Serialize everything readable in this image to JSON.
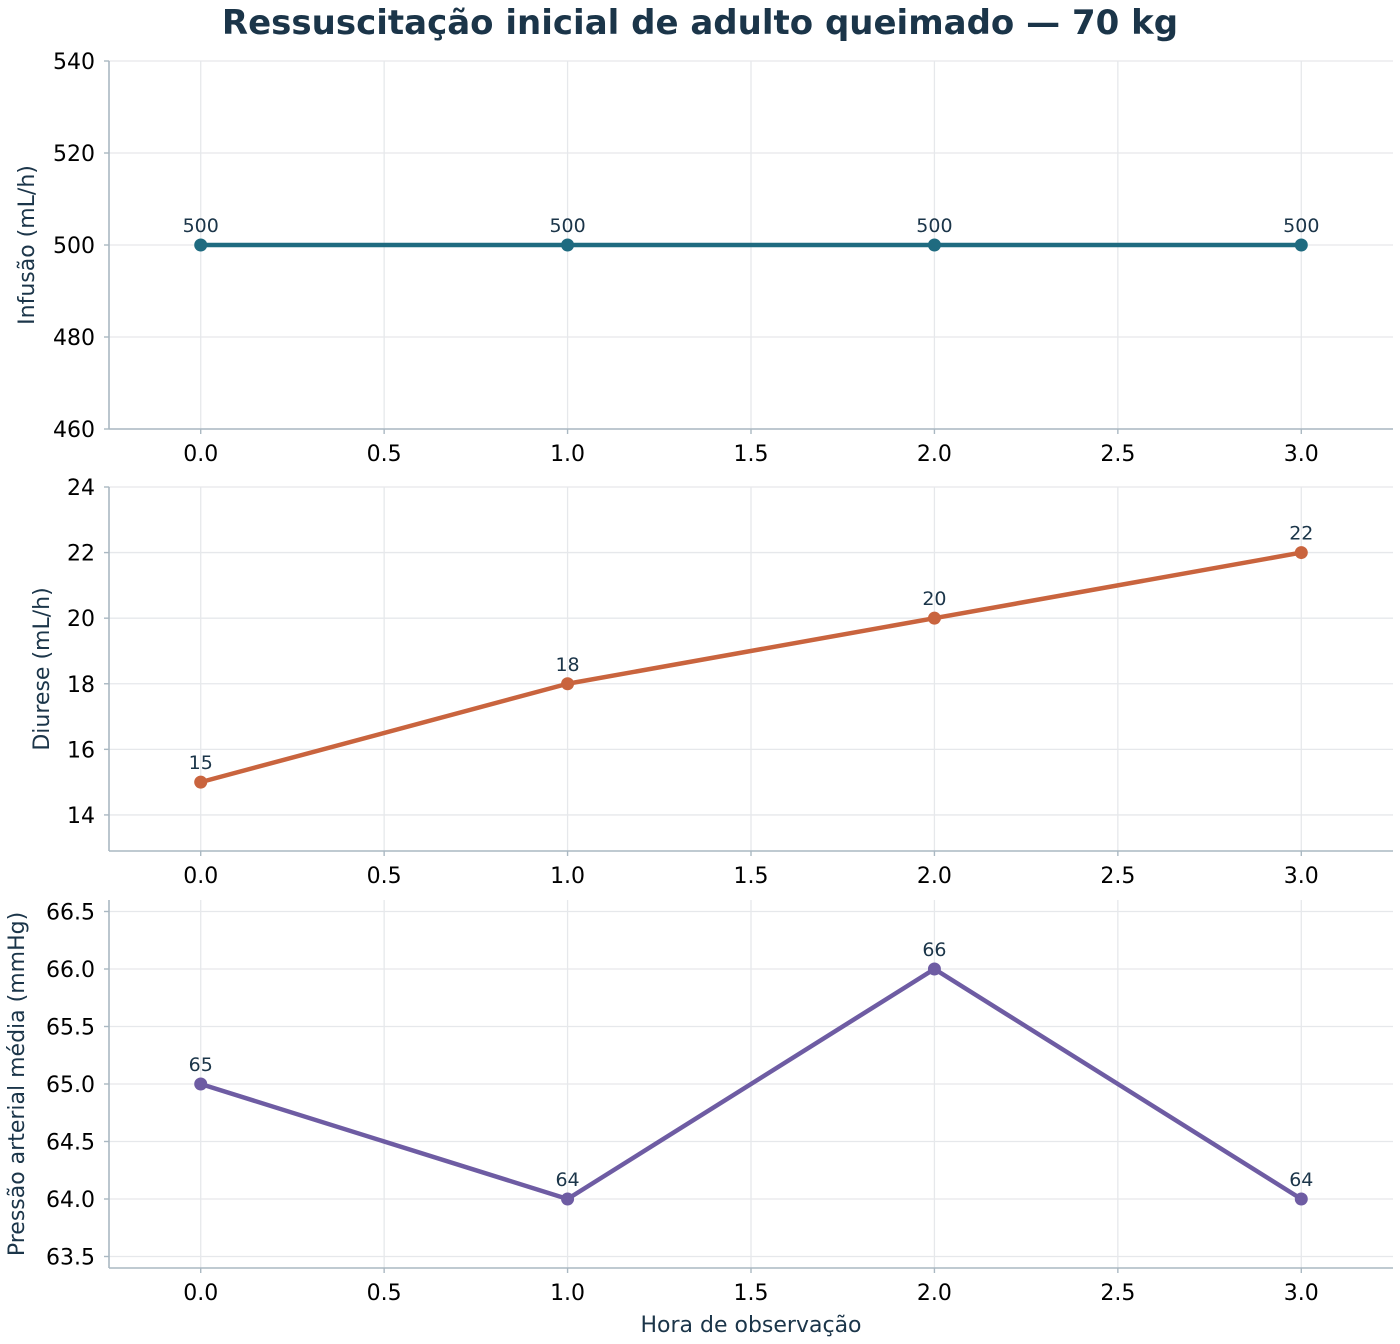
{
  "title": "Ressuscitação inicial de adulto queimado — 70 kg",
  "xlabel": "Hora de observação",
  "chart_data": [
    {
      "type": "line",
      "ylabel": "Infusão (mL/h)",
      "x": [
        0,
        1,
        2,
        3
      ],
      "values": [
        500,
        500,
        500,
        500
      ],
      "data_labels": [
        "500",
        "500",
        "500",
        "500"
      ],
      "color": "#1f6b80",
      "xlim": [
        -0.25,
        3.25
      ],
      "ylim": [
        460,
        540
      ],
      "xticks": [
        0.0,
        0.5,
        1.0,
        1.5,
        2.0,
        2.5,
        3.0
      ],
      "xtick_labels": [
        "0.0",
        "0.5",
        "1.0",
        "1.5",
        "2.0",
        "2.5",
        "3.0"
      ],
      "yticks": [
        460,
        480,
        500,
        520,
        540
      ],
      "ytick_labels": [
        "460",
        "480",
        "500",
        "520",
        "540"
      ],
      "grid": true
    },
    {
      "type": "line",
      "ylabel": "Diurese (mL/h)",
      "x": [
        0,
        1,
        2,
        3
      ],
      "values": [
        15,
        18,
        20,
        22
      ],
      "data_labels": [
        "15",
        "18",
        "20",
        "22"
      ],
      "color": "#c9643e",
      "xlim": [
        -0.25,
        3.25
      ],
      "ylim": [
        12.9,
        24
      ],
      "xticks": [
        0.0,
        0.5,
        1.0,
        1.5,
        2.0,
        2.5,
        3.0
      ],
      "xtick_labels": [
        "0.0",
        "0.5",
        "1.0",
        "1.5",
        "2.0",
        "2.5",
        "3.0"
      ],
      "yticks": [
        14,
        16,
        18,
        20,
        22,
        24
      ],
      "ytick_labels": [
        "14",
        "16",
        "18",
        "20",
        "22",
        "24"
      ],
      "grid": true
    },
    {
      "type": "line",
      "ylabel": "Pressão arterial média (mmHg)",
      "x": [
        0,
        1,
        2,
        3
      ],
      "values": [
        65,
        64,
        66,
        64
      ],
      "data_labels": [
        "65",
        "64",
        "66",
        "64"
      ],
      "color": "#6e5ca3",
      "xlim": [
        -0.25,
        3.25
      ],
      "ylim": [
        63.4,
        66.6
      ],
      "xticks": [
        0.0,
        0.5,
        1.0,
        1.5,
        2.0,
        2.5,
        3.0
      ],
      "xtick_labels": [
        "0.0",
        "0.5",
        "1.0",
        "1.5",
        "2.0",
        "2.5",
        "3.0"
      ],
      "yticks": [
        63.5,
        64.0,
        64.5,
        65.0,
        65.5,
        66.0,
        66.5
      ],
      "ytick_labels": [
        "63.5",
        "64.0",
        "64.5",
        "65.0",
        "65.5",
        "66.0",
        "66.5"
      ],
      "grid": true
    }
  ]
}
